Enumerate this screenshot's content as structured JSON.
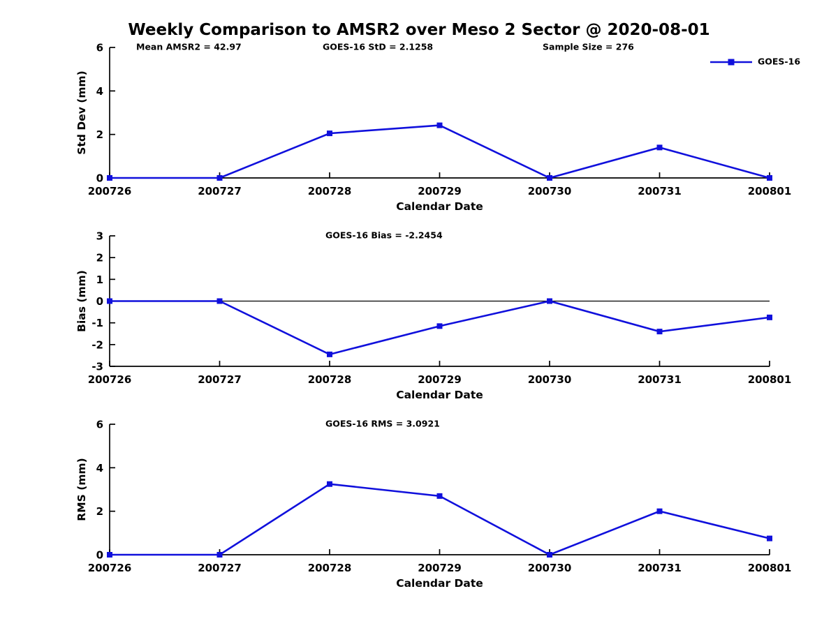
{
  "figure": {
    "title": "Weekly Comparison to AMSR2 over Meso 2 Sector @ 2020-08-01",
    "series_color": "#1010dc",
    "axis_color": "#000000",
    "text_color": "#000000",
    "legend": {
      "label": "GOES-16",
      "position": "top-right"
    }
  },
  "chart_data": [
    {
      "type": "line",
      "panel": "std-dev",
      "annotations": [
        "Mean AMSR2 = 42.97",
        "GOES-16 StD = 2.1258",
        "Sample Size = 276"
      ],
      "xlabel": "Calendar Date",
      "ylabel": "Std Dev (mm)",
      "categories": [
        "200726",
        "200727",
        "200728",
        "200729",
        "200730",
        "200731",
        "200801"
      ],
      "series": [
        {
          "name": "GOES-16",
          "values": [
            0,
            0,
            2.05,
            2.42,
            0,
            1.4,
            0
          ]
        }
      ],
      "ylim": [
        0,
        6
      ],
      "yticks": [
        0,
        2,
        4,
        6
      ],
      "grid": false,
      "zero_line": false,
      "legend": true
    },
    {
      "type": "line",
      "panel": "bias",
      "annotations": [
        "GOES-16 Bias  = -2.2454"
      ],
      "xlabel": "Calendar Date",
      "ylabel": "Bias (mm)",
      "categories": [
        "200726",
        "200727",
        "200728",
        "200729",
        "200730",
        "200731",
        "200801"
      ],
      "series": [
        {
          "name": "GOES-16",
          "values": [
            0,
            0,
            -2.45,
            -1.15,
            0,
            -1.4,
            -0.75
          ]
        }
      ],
      "ylim": [
        -3,
        3
      ],
      "yticks": [
        -3,
        -2,
        -1,
        0,
        1,
        2,
        3
      ],
      "grid": false,
      "zero_line": true,
      "legend": false
    },
    {
      "type": "line",
      "panel": "rms",
      "annotations": [
        "GOES-16 RMS = 3.0921"
      ],
      "xlabel": "Calendar Date",
      "ylabel": "RMS (mm)",
      "categories": [
        "200726",
        "200727",
        "200728",
        "200729",
        "200730",
        "200731",
        "200801"
      ],
      "series": [
        {
          "name": "GOES-16",
          "values": [
            0,
            0,
            3.25,
            2.7,
            0,
            2.0,
            0.75
          ]
        }
      ],
      "ylim": [
        0,
        6
      ],
      "yticks": [
        0,
        2,
        4,
        6
      ],
      "grid": false,
      "zero_line": false,
      "legend": false
    }
  ]
}
